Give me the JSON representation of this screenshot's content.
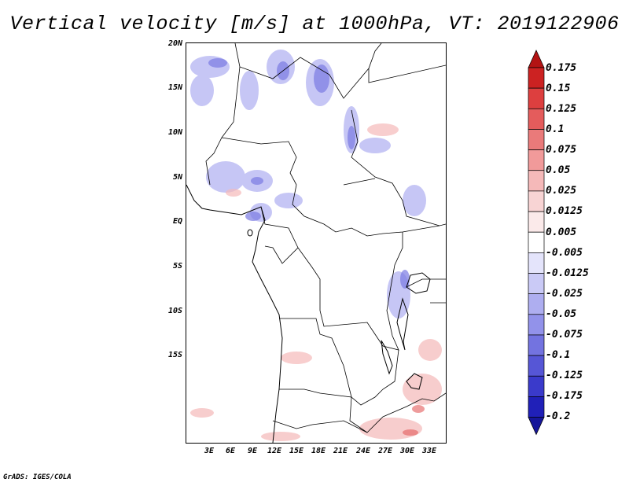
{
  "title": "Vertical velocity [m/s] at 1000hPa, VT: 2019122906",
  "credit": "GrADS: IGES/COLA",
  "lat_labels": [
    "20N",
    "15N",
    "10N",
    "5N",
    "EQ",
    "5S",
    "10S",
    "15S"
  ],
  "lon_labels": [
    "3E",
    "6E",
    "9E",
    "12E",
    "15E",
    "18E",
    "21E",
    "24E",
    "27E",
    "30E",
    "33E"
  ],
  "colorbar": {
    "levels": [
      "0.175",
      "0.15",
      "0.125",
      "0.1",
      "0.075",
      "0.05",
      "0.025",
      "0.0125",
      "0.005",
      "-0.005",
      "-0.0125",
      "-0.025",
      "-0.05",
      "-0.075",
      "-0.1",
      "-0.125",
      "-0.175",
      "-0.2"
    ],
    "colors": [
      "#b31313",
      "#cc2222",
      "#dd3f3f",
      "#e45c5c",
      "#ea7a7a",
      "#f19a9a",
      "#f5b9b9",
      "#f8d4d4",
      "#fbeaea",
      "#ffffff",
      "#e4e4fb",
      "#cacaf6",
      "#aeaef0",
      "#9292ea",
      "#7373e0",
      "#5656d6",
      "#3a3acb",
      "#2020b8",
      "#16169a"
    ]
  }
}
